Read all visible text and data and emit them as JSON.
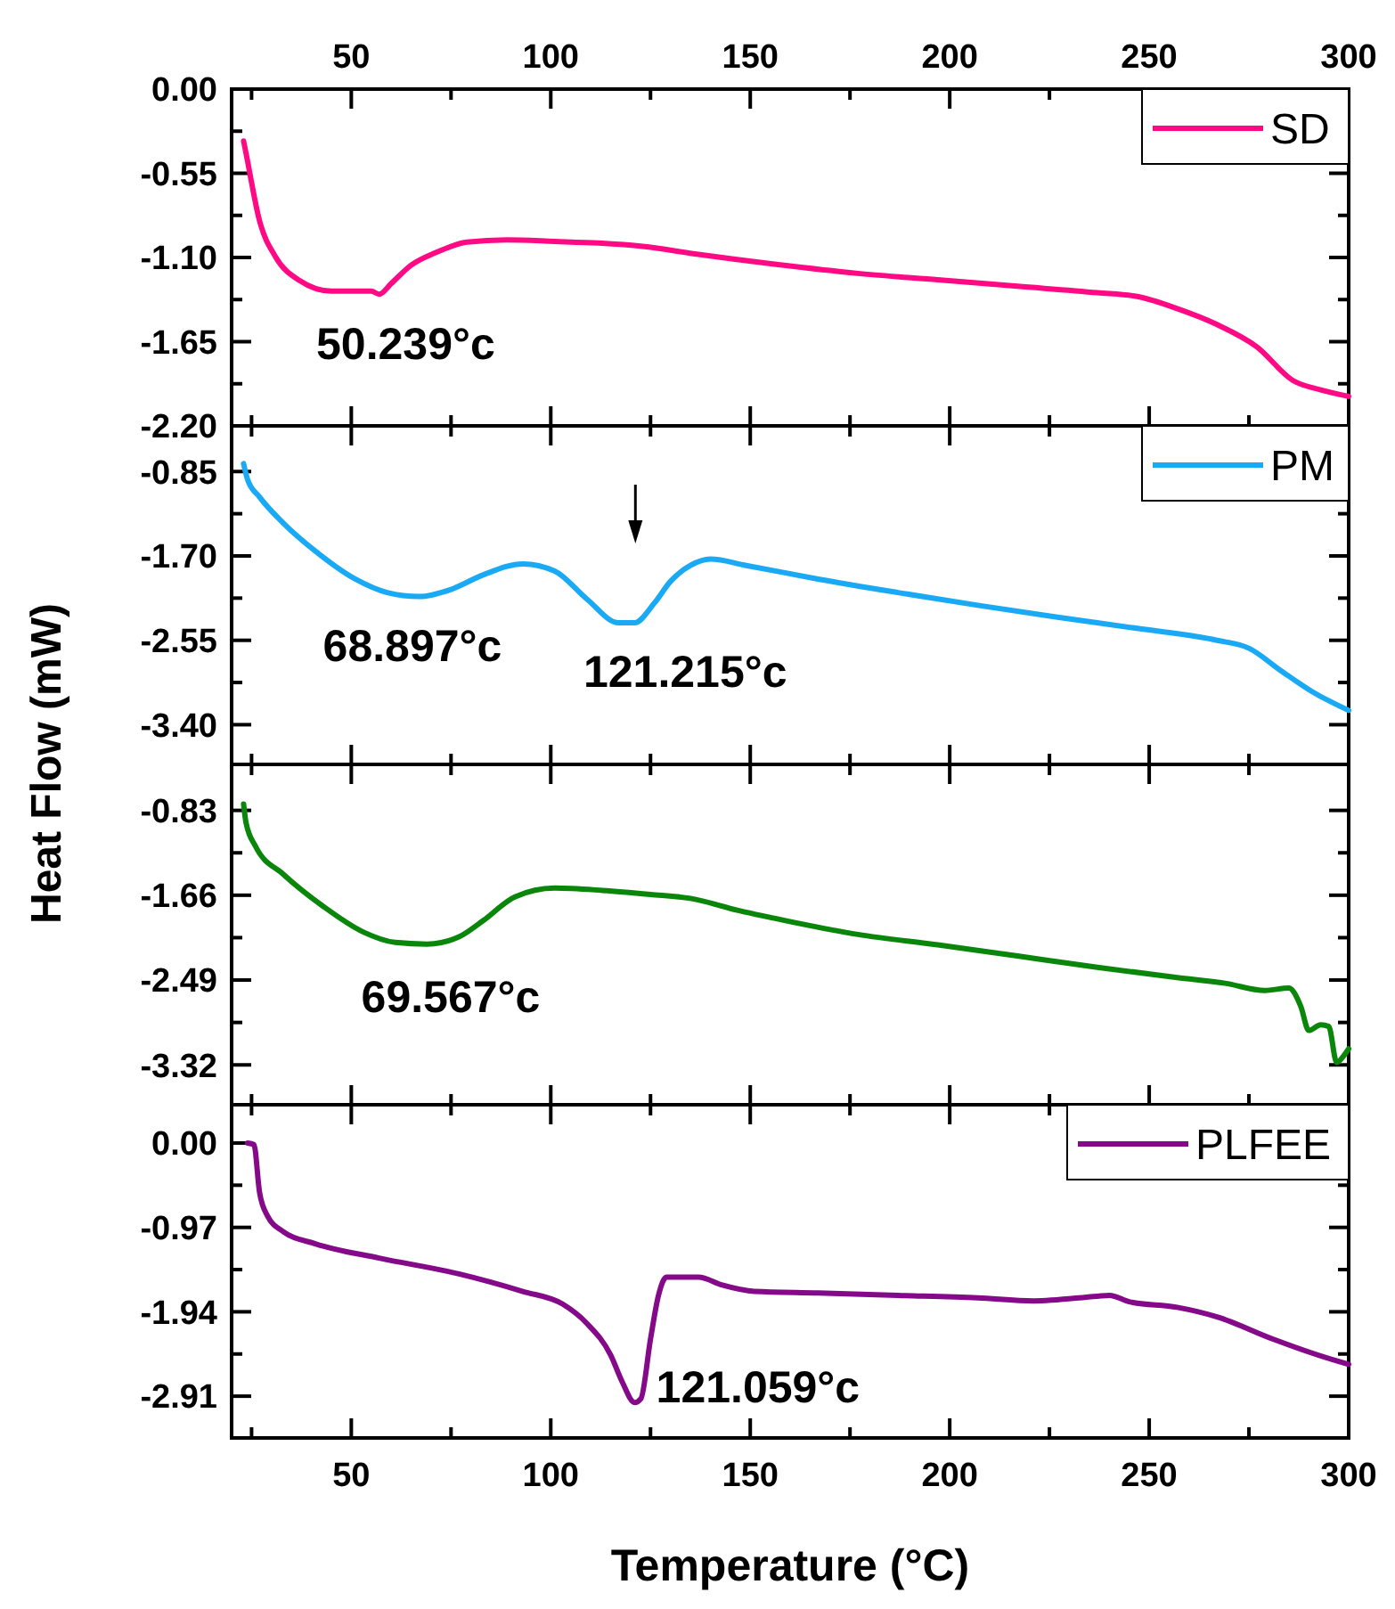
{
  "chart_data": [
    {
      "type": "line",
      "ylabel": "Heat Flow (mW)",
      "xlim": [
        20,
        300
      ],
      "xticks": [
        {
          "value": 25,
          "label": null
        },
        50,
        {
          "value": 75,
          "label": null
        },
        100,
        {
          "value": 125,
          "label": null
        },
        150,
        {
          "value": 175,
          "label": null
        },
        200,
        {
          "value": 225,
          "label": null
        },
        250,
        {
          "value": 275,
          "label": null
        },
        300
      ],
      "x2lim": [
        20,
        300
      ],
      "x2ticks": [
        {
          "value": 25,
          "label": null
        },
        50,
        {
          "value": 75,
          "label": null
        },
        100,
        {
          "value": 125,
          "label": null
        },
        150,
        {
          "value": 175,
          "label": null
        },
        200,
        {
          "value": 225,
          "label": null
        },
        250,
        {
          "value": 275,
          "label": null
        },
        300
      ],
      "ylim": [
        -2.2,
        0
      ],
      "yticks": [
        {
          "value": 0,
          "label": "0.00"
        },
        {
          "value": -0.275,
          "label": null
        },
        {
          "value": -0.55,
          "label": "-0.55"
        },
        {
          "value": -0.825,
          "label": null
        },
        {
          "value": -1.1,
          "label": "-1.10"
        },
        {
          "value": -1.375,
          "label": null
        },
        {
          "value": -1.65,
          "label": "-1.65"
        },
        {
          "value": -1.925,
          "label": null
        },
        {
          "value": -2.2,
          "label": "-2.20"
        }
      ],
      "tick_labels": "y",
      "legend": "top right",
      "annotations": [
        {
          "text": "50.239°c",
          "x": 50.239,
          "y": -1.32
        }
      ],
      "series": [
        {
          "name": "SD",
          "color": "#ff0a84",
          "x": [
            23,
            23.6,
            27,
            31,
            37,
            45,
            51,
            55,
            57,
            60,
            65,
            71,
            79,
            89,
            101,
            112,
            123,
            137,
            157,
            177,
            197,
            217,
            237,
            247,
            257,
            267,
            277,
            286,
            293,
            300
          ],
          "values": [
            -0.339,
            -0.417,
            -0.86,
            -1.095,
            -1.25,
            -1.32,
            -1.32,
            -1.32,
            -1.34,
            -1.27,
            -1.15,
            -1.07,
            -1.0,
            -0.985,
            -0.995,
            -1.006,
            -1.027,
            -1.08,
            -1.147,
            -1.204,
            -1.246,
            -1.288,
            -1.33,
            -1.355,
            -1.434,
            -1.538,
            -1.684,
            -1.903,
            -1.965,
            -2.007
          ]
        }
      ]
    },
    {
      "type": "line",
      "xlim": [
        20,
        300
      ],
      "xticks": [
        {
          "value": 25,
          "label": null
        },
        50,
        {
          "value": 75,
          "label": null
        },
        100,
        {
          "value": 125,
          "label": null
        },
        150,
        {
          "value": 175,
          "label": null
        },
        200,
        {
          "value": 225,
          "label": null
        },
        250,
        {
          "value": 275,
          "label": null
        },
        300
      ],
      "ylim": [
        -3.8,
        -0.39
      ],
      "yticks": [
        {
          "value": -0.85,
          "label": "-0.85"
        },
        {
          "value": -1.275,
          "label": null
        },
        {
          "value": -1.7,
          "label": "-1.70"
        },
        {
          "value": -2.125,
          "label": null
        },
        {
          "value": -2.55,
          "label": "-2.55"
        },
        {
          "value": -2.975,
          "label": null
        },
        {
          "value": -3.4,
          "label": "-3.40"
        }
      ],
      "tick_labels": "y",
      "legend": "top right",
      "annotations": [
        {
          "text": "68.897°c",
          "x": 68.897,
          "y": -2.109
        },
        {
          "text": "121.215°c",
          "x": 121.215,
          "y": -2.374
        }
      ],
      "series": [
        {
          "name": "PM",
          "color": "#1aaaf5",
          "x": [
            23,
            24,
            27,
            33,
            41,
            51,
            59,
            67,
            75,
            83,
            93,
            101,
            109,
            117,
            121,
            126,
            130,
            135,
            140,
            149,
            167,
            187,
            207,
            227,
            247,
            267,
            275,
            283,
            291,
            300
          ],
          "values": [
            -0.77,
            -0.93,
            -1.107,
            -1.371,
            -1.652,
            -1.933,
            -2.069,
            -2.109,
            -2.037,
            -1.892,
            -1.78,
            -1.852,
            -2.133,
            -2.374,
            -2.374,
            -2.173,
            -1.957,
            -1.796,
            -1.732,
            -1.796,
            -1.933,
            -2.069,
            -2.197,
            -2.317,
            -2.43,
            -2.55,
            -2.63,
            -2.855,
            -3.071,
            -3.256
          ]
        }
      ]
    },
    {
      "type": "line",
      "xlim": [
        20,
        300
      ],
      "xticks": [
        {
          "value": 25,
          "label": null
        },
        50,
        {
          "value": 75,
          "label": null
        },
        100,
        {
          "value": 125,
          "label": null
        },
        150,
        {
          "value": 175,
          "label": null
        },
        200,
        {
          "value": 225,
          "label": null
        },
        250,
        {
          "value": 275,
          "label": null
        },
        300
      ],
      "ylim": [
        -3.71,
        -0.38
      ],
      "yticks": [
        {
          "value": -0.83,
          "label": "-0.83"
        },
        {
          "value": -1.245,
          "label": null
        },
        {
          "value": -1.66,
          "label": "-1.66"
        },
        {
          "value": -2.075,
          "label": null
        },
        {
          "value": -2.49,
          "label": "-2.49"
        },
        {
          "value": -2.905,
          "label": null
        },
        {
          "value": -3.32,
          "label": "-3.32"
        }
      ],
      "tick_labels": "y",
      "annotations": [
        {
          "text": "69.567°c",
          "x": 69.567,
          "y": -2.138
        }
      ],
      "series": [
        {
          "color": "#0a870a",
          "x": [
            23,
            23.6,
            26,
            33,
            43,
            53,
            61,
            69,
            77,
            83,
            91,
            101,
            113,
            125,
            135,
            147,
            161,
            177,
            197,
            217,
            237,
            257,
            269,
            279,
            285,
            288,
            290,
            293,
            295,
            297,
            299,
            300
          ],
          "values": [
            -0.767,
            -0.947,
            -1.182,
            -1.456,
            -1.77,
            -2.02,
            -2.122,
            -2.138,
            -2.067,
            -1.91,
            -1.676,
            -1.59,
            -1.613,
            -1.652,
            -1.691,
            -1.809,
            -1.926,
            -2.044,
            -2.145,
            -2.255,
            -2.365,
            -2.466,
            -2.521,
            -2.592,
            -2.568,
            -2.748,
            -2.983,
            -2.928,
            -2.944,
            -3.296,
            -3.218,
            -3.163
          ]
        }
      ]
    },
    {
      "type": "line",
      "xlabel": "Temperature (°C)",
      "xlim": [
        20,
        300
      ],
      "xticks": [
        {
          "value": 25,
          "label": null
        },
        50,
        {
          "value": 75,
          "label": null
        },
        100,
        {
          "value": 125,
          "label": null
        },
        150,
        {
          "value": 175,
          "label": null
        },
        200,
        {
          "value": 225,
          "label": null
        },
        250,
        {
          "value": 275,
          "label": null
        },
        300
      ],
      "ylim": [
        -3.39,
        0.44
      ],
      "yticks": [
        {
          "value": 0,
          "label": "0.00"
        },
        {
          "value": -0.485,
          "label": null
        },
        {
          "value": -0.97,
          "label": "-0.97"
        },
        {
          "value": -1.455,
          "label": null
        },
        {
          "value": -1.94,
          "label": "-1.94"
        },
        {
          "value": -2.425,
          "label": null
        },
        {
          "value": -2.91,
          "label": "-2.91"
        }
      ],
      "legend": "top right",
      "annotations": [
        {
          "text": "121.059°c",
          "x": 121.059,
          "y": -2.983
        }
      ],
      "series": [
        {
          "name": "PLFEE",
          "color": "#850a8a",
          "x": [
            24,
            25.6,
            27,
            29,
            33,
            41,
            57,
            77,
            93,
            103,
            109,
            115,
            118,
            121,
            122.6,
            125,
            127,
            129,
            137,
            143,
            151,
            167,
            187,
            207,
            221,
            237,
            240,
            245,
            257,
            267,
            281,
            291,
            300
          ],
          "values": [
            0,
            -0.018,
            -0.566,
            -0.839,
            -1.02,
            -1.158,
            -1.323,
            -1.505,
            -1.706,
            -1.852,
            -2.071,
            -2.436,
            -2.755,
            -2.983,
            -2.937,
            -2.253,
            -1.751,
            -1.542,
            -1.542,
            -1.633,
            -1.706,
            -1.724,
            -1.751,
            -1.779,
            -1.815,
            -1.761,
            -1.751,
            -1.824,
            -1.888,
            -1.998,
            -2.253,
            -2.417,
            -2.545
          ]
        }
      ]
    }
  ]
}
